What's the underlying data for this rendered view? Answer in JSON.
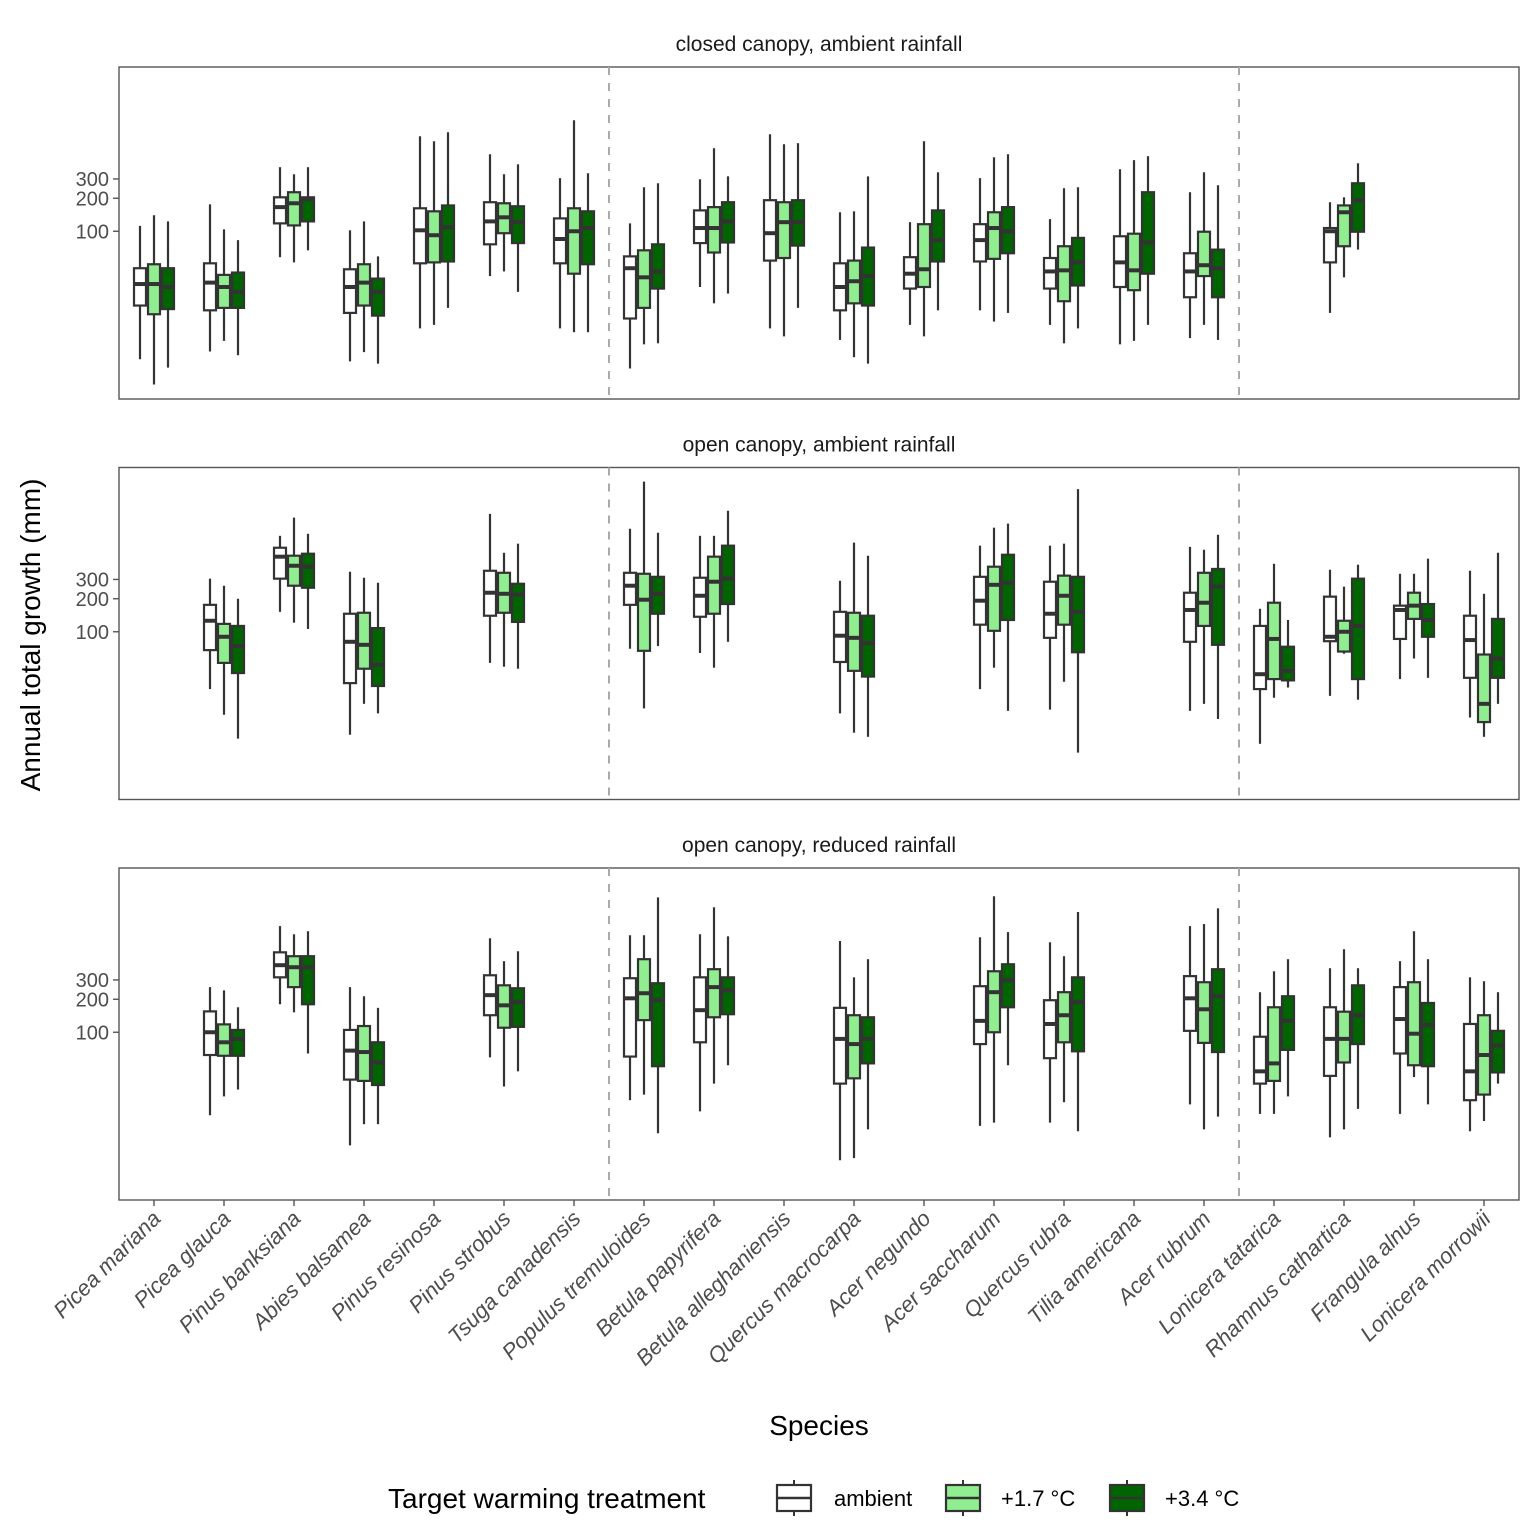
{
  "chart_data": {
    "type": "boxplot",
    "scale": "log10",
    "xlabel": "Species",
    "ylabel": "Annual total growth (mm)",
    "ylim": [
      2.95,
      3150
    ],
    "yticks": [
      100,
      200,
      300
    ],
    "ytick_labels": [
      "100",
      "200",
      "300"
    ],
    "grid": false,
    "group_separators_after": [
      "Tsuga canadensis",
      "Acer rubrum"
    ],
    "categories": [
      "Picea mariana",
      "Picea glauca",
      "Pinus banksiana",
      "Abies balsamea",
      "Pinus resinosa",
      "Pinus strobus",
      "Tsuga canadensis",
      "Populus tremuloides",
      "Betula papyrifera",
      "Betula alleghaniensis",
      "Quercus macrocarpa",
      "Acer negundo",
      "Acer saccharum",
      "Quercus rubra",
      "Tilia americana",
      "Acer rubrum",
      "Lonicera tatarica",
      "Rhamnus cathartica",
      "Frangula alnus",
      "Lonicera morrowii"
    ],
    "legend": {
      "title": "Target warming treatment",
      "position": "bottom",
      "entries": [
        {
          "name": "ambient",
          "color": "#ffffff"
        },
        {
          "name": "+1.7 °C",
          "color": "#90ee90"
        },
        {
          "name": "+3.4 °C",
          "color": "#006400"
        }
      ]
    },
    "stat_order": [
      "whisker_low",
      "q1",
      "median",
      "q3",
      "whisker_high"
    ],
    "panels": [
      {
        "title": "closed canopy, ambient rainfall",
        "boxes": {
          "Picea mariana": [
            [
              6.8,
              21,
              33,
              46,
              112
            ],
            [
              4,
              17.5,
              33,
              50,
              140
            ],
            [
              5.7,
              19.5,
              31,
              46,
              123
            ]
          ],
          "Picea glauca": [
            [
              8,
              19,
              34,
              51,
              176
            ],
            [
              10,
              20,
              31,
              40,
              104
            ],
            [
              7.4,
              20,
              28,
              42,
              83
            ]
          ],
          "Pinus banksiana": [
            [
              58,
              118,
              166,
              204,
              384
            ],
            [
              52,
              113,
              180,
              227,
              331
            ],
            [
              67,
              123,
              196,
              204,
              384
            ]
          ],
          "Abies balsamea": [
            [
              6.5,
              18,
              31,
              45,
              102
            ],
            [
              7.9,
              21,
              34,
              50,
              123
            ],
            [
              6.2,
              17,
              28,
              37,
              59
            ]
          ],
          "Pinus resinosa": [
            [
              13,
              51,
              102,
              162,
              735
            ],
            [
              14,
              52,
              92,
              152,
              662
            ],
            [
              20,
              53,
              109,
              172,
              800
            ]
          ],
          "Pinus strobus": [
            [
              39,
              76,
              123,
              184,
              504
            ],
            [
              43,
              96,
              134,
              180,
              331
            ],
            [
              28,
              78,
              121,
              169,
              408
            ]
          ],
          "Tsuga canadensis": [
            [
              13,
              51,
              85,
              131,
              305
            ],
            [
              12,
              41,
              100,
              162,
              1030
            ],
            [
              12,
              50,
              107,
              152,
              338
            ]
          ],
          "Populus tremuloides": [
            [
              5.6,
              16,
              46,
              59,
              118
            ],
            [
              9.3,
              20,
              38,
              67,
              252
            ],
            [
              9.5,
              30,
              43,
              76,
              274
            ]
          ],
          "Betula papyrifera": [
            [
              31,
              78,
              107,
              155,
              298
            ],
            [
              22,
              64,
              107,
              166,
              572
            ],
            [
              27,
              79,
              123,
              184,
              317
            ]
          ],
          "Betula alleghaniensis": [
            [
              13,
              54,
              96,
              192,
              767
            ],
            [
              11,
              57,
              121,
              184,
              622
            ],
            [
              20,
              74,
              121,
              192,
              636
            ]
          ],
          "Quercus macrocarpa": [
            [
              10.2,
              19,
              31,
              51,
              149
            ],
            [
              7.1,
              22,
              35,
              54,
              152
            ],
            [
              6.2,
              21,
              39,
              71,
              317
            ]
          ],
          "Acer negundo": [
            [
              14,
              30,
              41,
              58,
              121
            ],
            [
              11,
              31,
              45,
              116,
              662
            ],
            [
              19,
              53,
              83,
              155,
              345
            ]
          ],
          "Acer saccharum": [
            [
              19,
              53,
              83,
              116,
              305
            ],
            [
              15,
              56,
              107,
              149,
              473
            ],
            [
              18,
              63,
              100,
              166,
              504
            ]
          ],
          "Quercus rubra": [
            [
              14,
              30,
              43,
              57,
              129
            ],
            [
              9.5,
              23,
              44,
              73,
              247
            ],
            [
              13,
              32,
              52,
              87,
              252
            ]
          ],
          "Tilia americana": [
            [
              9.3,
              31,
              52,
              90,
              368
            ],
            [
              10,
              29,
              44,
              95,
              445
            ],
            [
              14,
              41,
              79,
              227,
              484
            ]
          ],
          "Acer rubrum": [
            [
              10.6,
              25,
              43,
              63,
              227
            ],
            [
              14,
              39,
              49,
              99,
              345
            ],
            [
              10.2,
              25,
              46,
              68,
              263
            ]
          ],
          "Rhamnus cathartica": [
            [
              18,
              52,
              100,
              107,
              184
            ],
            [
              38,
              73,
              149,
              172,
              204
            ],
            [
              68,
              99,
              192,
              274,
              417
            ]
          ]
        }
      },
      {
        "title": "open canopy, ambient rainfall",
        "boxes": {
          "Picea glauca": [
            [
              30,
              68,
              126,
              176,
              305
            ],
            [
              17.5,
              52,
              90,
              118,
              263
            ],
            [
              10.6,
              42,
              74,
              113,
              200
            ]
          ],
          "Pinus banksiana": [
            [
              152,
              305,
              484,
              584,
              750
            ],
            [
              121,
              263,
              400,
              494,
              1100
            ],
            [
              106,
              252,
              392,
              515,
              783
            ]
          ],
          "Abies balsamea": [
            [
              11.5,
              34,
              81,
              146,
              353
            ],
            [
              22,
              46,
              76,
              149,
              311
            ],
            [
              18,
              32,
              50,
              108,
              280
            ]
          ],
          "Pinus strobus": [
            [
              52,
              140,
              227,
              360,
              1190
            ],
            [
              48,
              149,
              222,
              345,
              525
            ],
            [
              46,
              123,
              218,
              274,
              636
            ]
          ],
          "Populus tremuloides": [
            [
              70,
              176,
              263,
              345,
              870
            ],
            [
              20,
              67,
              196,
              338,
              2340
            ],
            [
              74,
              146,
              222,
              317,
              800
            ]
          ],
          "Betula papyrifera": [
            [
              64,
              137,
              213,
              311,
              750
            ],
            [
              47,
              146,
              286,
              484,
              750
            ],
            [
              81,
              179,
              305,
              610,
              1270
            ]
          ],
          "Quercus macrocarpa": [
            [
              18,
              53,
              92,
              152,
              292
            ],
            [
              12,
              44,
              88,
              149,
              650
            ],
            [
              11,
              39,
              79,
              140,
              494
            ]
          ],
          "Acer saccharum": [
            [
              30,
              116,
              192,
              317,
              610
            ],
            [
              47,
              102,
              268,
              392,
              890
            ],
            [
              19,
              128,
              280,
              504,
              970
            ]
          ],
          "Quercus rubra": [
            [
              19.5,
              88,
              146,
              286,
              610
            ],
            [
              35,
              116,
              213,
              325,
              636
            ],
            [
              7.9,
              65,
              152,
              317,
              2000
            ]
          ],
          "Acer rubrum": [
            [
              19,
              81,
              158,
              227,
              595
            ],
            [
              22,
              113,
              184,
              345,
              560
            ],
            [
              16,
              76,
              258,
              374,
              767
            ]
          ],
          "Lonicera tatarica": [
            [
              9.5,
              30,
              41,
              113,
              162
            ],
            [
              25,
              37,
              86,
              184,
              417
            ],
            [
              31,
              36,
              44,
              73,
              128
            ]
          ],
          "Rhamnus cathartica": [
            [
              26,
              82,
              90,
              209,
              368
            ],
            [
              63,
              66,
              100,
              126,
              258
            ],
            [
              24,
              37,
              113,
              305,
              409
            ]
          ],
          "Frangula alnus": [
            [
              37,
              86,
              158,
              173,
              338
            ],
            [
              57,
              131,
              173,
              227,
              338
            ],
            [
              38,
              90,
              128,
              179,
              464
            ]
          ],
          "Lonicera morrowii": [
            [
              16.5,
              38,
              84,
              140,
              360
            ],
            [
              11,
              15,
              22,
              62,
              222
            ],
            [
              22,
              38,
              57,
              131,
              525
            ]
          ]
        }
      },
      {
        "title": "open canopy, reduced rainfall",
        "boxes": {
          "Picea glauca": [
            [
              17.5,
              62,
              100,
              155,
              258
            ],
            [
              26,
              61,
              81,
              118,
              241
            ],
            [
              30,
              61,
              87,
              105,
              169
            ]
          ],
          "Pinus banksiana": [
            [
              180,
              317,
              409,
              536,
              930
            ],
            [
              152,
              258,
              392,
              494,
              783
            ],
            [
              64,
              180,
              392,
              494,
              835
            ]
          ],
          "Abies balsamea": [
            [
              9.3,
              37,
              68,
              105,
              258
            ],
            [
              14.5,
              36,
              66,
              114,
              213
            ],
            [
              14.5,
              33,
              53,
              81,
              167
            ]
          ],
          "Pinus strobus": [
            [
              59,
              143,
              218,
              331,
              720
            ],
            [
              32,
              110,
              176,
              268,
              445
            ],
            [
              44,
              112,
              188,
              252,
              548
            ]
          ],
          "Populus tremuloides": [
            [
              24,
              60,
              204,
              311,
              767
            ],
            [
              27,
              129,
              227,
              464,
              767
            ],
            [
              12,
              49,
              196,
              280,
              1700
            ]
          ],
          "Betula papyrifera": [
            [
              19,
              81,
              159,
              317,
              783
            ],
            [
              34,
              137,
              258,
              376,
              1380
            ],
            [
              50,
              146,
              241,
              317,
              750
            ]
          ],
          "Quercus macrocarpa": [
            [
              6.8,
              34,
              87,
              167,
              680
            ],
            [
              7.1,
              38,
              78,
              143,
              317
            ],
            [
              13,
              52,
              87,
              137,
              464
            ]
          ],
          "Acer saccharum": [
            [
              14,
              78,
              127,
              263,
              735
            ],
            [
              15,
              100,
              232,
              360,
              1740
            ],
            [
              50,
              169,
              298,
              417,
              820
            ]
          ],
          "Quercus rubra": [
            [
              15,
              58,
              119,
              196,
              662
            ],
            [
              23,
              81,
              143,
              232,
              494
            ],
            [
              12.5,
              67,
              188,
              317,
              1250
            ]
          ],
          "Acer rubrum": [
            [
              22,
              103,
              204,
              325,
              930
            ],
            [
              13,
              80,
              162,
              286,
              970
            ],
            [
              17,
              66,
              213,
              376,
              1350
            ]
          ],
          "Lonicera tatarica": [
            [
              18,
              34,
              44,
              91,
              232
            ],
            [
              18,
              36,
              52,
              169,
              360
            ],
            [
              26,
              69,
              127,
              213,
              464
            ]
          ],
          "Rhamnus cathartica": [
            [
              11,
              40,
              87,
              169,
              384
            ],
            [
              13,
              53,
              87,
              154,
              572
            ],
            [
              20,
              78,
              143,
              268,
              384
            ]
          ],
          "Frangula alnus": [
            [
              18,
              64,
              132,
              258,
              445
            ],
            [
              39,
              50,
              97,
              286,
              835
            ],
            [
              22,
              49,
              117,
              185,
              464
            ]
          ],
          "Lonicera morrowii": [
            [
              12.5,
              24,
              44,
              119,
              317
            ],
            [
              15.5,
              27,
              62,
              143,
              292
            ],
            [
              34,
              43,
              76,
              103,
              232
            ]
          ]
        }
      }
    ]
  }
}
